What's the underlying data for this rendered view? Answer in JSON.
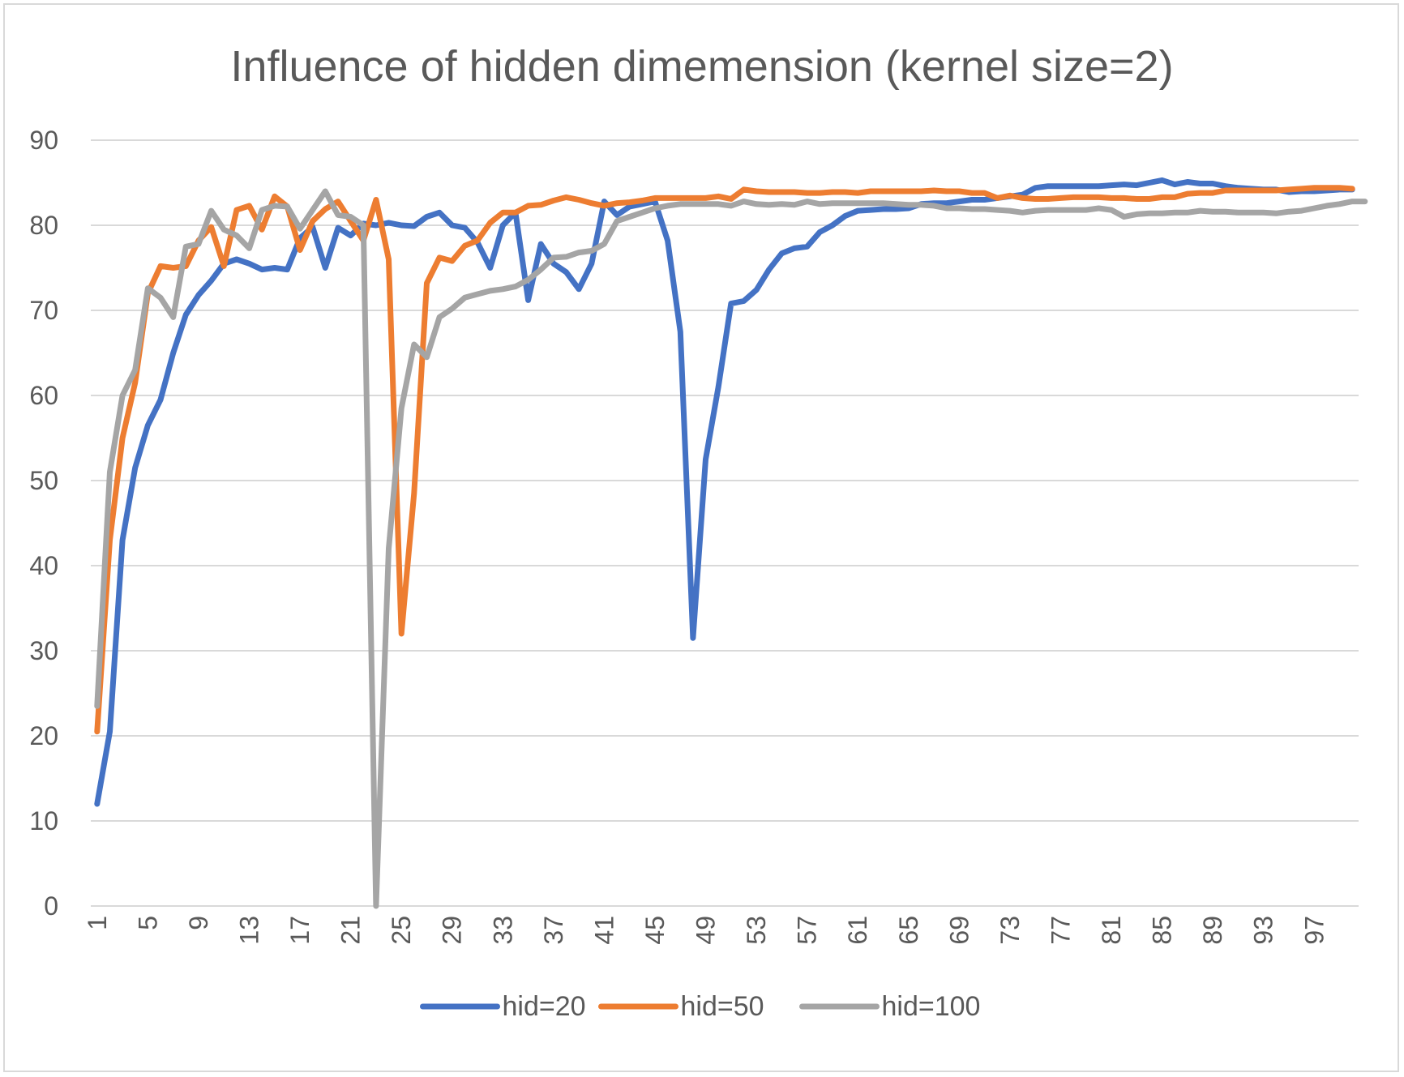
{
  "chart_data": {
    "type": "line",
    "title": "Influence of hidden dimemension (kernel size=2)",
    "xlabel": "",
    "ylabel": "",
    "ylim": [
      0,
      90
    ],
    "yticks": [
      0,
      10,
      20,
      30,
      40,
      50,
      60,
      70,
      80,
      90
    ],
    "xticks": [
      1,
      5,
      9,
      13,
      17,
      21,
      25,
      29,
      33,
      37,
      41,
      45,
      49,
      53,
      57,
      61,
      65,
      69,
      73,
      77,
      81,
      85,
      89,
      93,
      97
    ],
    "x_range": [
      1,
      100
    ],
    "grid": true,
    "legend_position": "bottom",
    "colors": {
      "hid=20": "#4472c4",
      "hid=50": "#ed7d31",
      "hid=100": "#a5a5a5",
      "grid": "#d9d9d9",
      "text": "#595959"
    },
    "series": [
      {
        "name": "hid=20",
        "values": [
          12,
          20.5,
          43,
          51.5,
          56.5,
          59.5,
          65,
          69.5,
          71.8,
          73.5,
          75.5,
          76,
          75.5,
          74.8,
          75,
          74.8,
          78.5,
          79.8,
          75,
          79.7,
          78.8,
          80.2,
          80,
          80.3,
          80,
          79.9,
          81,
          81.5,
          80,
          79.7,
          78,
          75,
          80,
          81.5,
          71.2,
          77.8,
          75.5,
          74.5,
          72.5,
          75.5,
          82.8,
          81.2,
          82.2,
          82.5,
          82.8,
          78.2,
          67.5,
          31.5,
          52.5,
          61,
          70.8,
          71.1,
          72.4,
          74.8,
          76.7,
          77.3,
          77.5,
          79.2,
          80,
          81.1,
          81.7,
          81.8,
          81.9,
          81.9,
          82,
          82.5,
          82.6,
          82.6,
          82.8,
          83,
          83,
          83.2,
          83.4,
          83.6,
          84.4,
          84.6,
          84.6,
          84.6,
          84.6,
          84.6,
          84.7,
          84.8,
          84.7,
          85,
          85.3,
          84.8,
          85.1,
          84.9,
          84.9,
          84.6,
          84.4,
          84.3,
          84.2,
          84.2,
          83.9,
          84,
          84,
          84.1,
          84.2,
          84.2
        ]
      },
      {
        "name": "hid=50",
        "values": [
          20.5,
          43,
          55,
          61.5,
          72,
          75.2,
          75,
          75.2,
          78.2,
          79.8,
          75.2,
          81.8,
          82.3,
          79.5,
          83.4,
          82.2,
          77.1,
          80.5,
          81.9,
          82.8,
          80.5,
          78.2,
          83,
          76,
          32,
          48.5,
          73.2,
          76.2,
          75.8,
          77.6,
          78.2,
          80.3,
          81.5,
          81.5,
          82.3,
          82.4,
          82.9,
          83.3,
          83,
          82.6,
          82.3,
          82.6,
          82.7,
          82.9,
          83.2,
          83.2,
          83.2,
          83.2,
          83.2,
          83.4,
          83.1,
          84.2,
          84,
          83.9,
          83.9,
          83.9,
          83.8,
          83.8,
          83.9,
          83.9,
          83.8,
          84,
          84,
          84,
          84,
          84,
          84.1,
          84,
          84,
          83.8,
          83.8,
          83.2,
          83.5,
          83.2,
          83.1,
          83.1,
          83.2,
          83.3,
          83.3,
          83.3,
          83.2,
          83.2,
          83.1,
          83.1,
          83.3,
          83.3,
          83.7,
          83.8,
          83.8,
          84.1,
          84.1,
          84.1,
          84.1,
          84.1,
          84.2,
          84.3,
          84.4,
          84.4,
          84.4,
          84.3
        ]
      },
      {
        "name": "hid=100",
        "values": [
          23.5,
          51,
          60,
          63,
          72.6,
          71.5,
          69.2,
          77.5,
          77.8,
          81.7,
          79.5,
          78.8,
          77.3,
          81.8,
          82.3,
          82.2,
          79.6,
          81.8,
          84,
          81.2,
          81,
          80,
          0,
          42,
          58.5,
          66,
          64.5,
          69.2,
          70.2,
          71.5,
          71.9,
          72.3,
          72.5,
          72.8,
          73.6,
          74.8,
          76.2,
          76.3,
          76.8,
          77,
          77.8,
          80.5,
          81,
          81.5,
          82,
          82.3,
          82.5,
          82.5,
          82.5,
          82.5,
          82.3,
          82.8,
          82.5,
          82.4,
          82.5,
          82.4,
          82.8,
          82.5,
          82.6,
          82.6,
          82.6,
          82.6,
          82.6,
          82.5,
          82.4,
          82.4,
          82.3,
          82,
          82,
          81.9,
          81.9,
          81.8,
          81.7,
          81.5,
          81.7,
          81.8,
          81.8,
          81.8,
          81.8,
          82,
          81.8,
          81,
          81.3,
          81.4,
          81.4,
          81.5,
          81.5,
          81.7,
          81.6,
          81.6,
          81.5,
          81.5,
          81.5,
          81.4,
          81.6,
          81.7,
          82,
          82.3,
          82.5,
          82.8,
          82.8
        ]
      }
    ]
  }
}
